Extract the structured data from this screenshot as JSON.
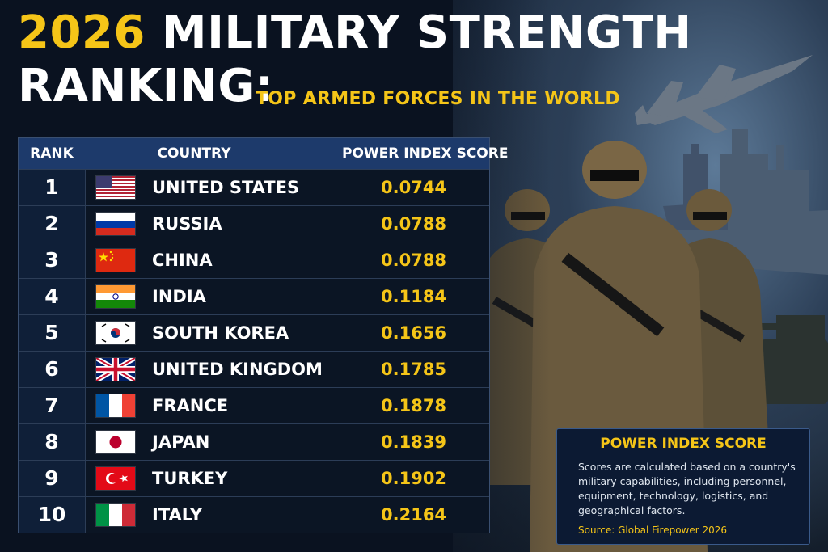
{
  "header": {
    "year": "2026",
    "title_line1_rest": "MILITARY STRENGTH",
    "title_line2": "RANKING:",
    "subtitle": "TOP ARMED FORCES IN THE WORLD"
  },
  "table": {
    "columns": [
      "RANK",
      "COUNTRY",
      "POWER INDEX SCORE"
    ],
    "rows": [
      {
        "rank": "1",
        "country": "UNITED STATES",
        "score": "0.0744",
        "flag": "us-flag-icon"
      },
      {
        "rank": "2",
        "country": "RUSSIA",
        "score": "0.0788",
        "flag": "russia-flag-icon"
      },
      {
        "rank": "3",
        "country": "CHINA",
        "score": "0.0788",
        "flag": "china-flag-icon"
      },
      {
        "rank": "4",
        "country": "INDIA",
        "score": "0.1184",
        "flag": "india-flag-icon"
      },
      {
        "rank": "5",
        "country": "SOUTH KOREA",
        "score": "0.1656",
        "flag": "south-korea-flag-icon"
      },
      {
        "rank": "6",
        "country": "UNITED KINGDOM",
        "score": "0.1785",
        "flag": "uk-flag-icon"
      },
      {
        "rank": "7",
        "country": "FRANCE",
        "score": "0.1878",
        "flag": "france-flag-icon"
      },
      {
        "rank": "8",
        "country": "JAPAN",
        "score": "0.1839",
        "flag": "japan-flag-icon"
      },
      {
        "rank": "9",
        "country": "TURKEY",
        "score": "0.1902",
        "flag": "turkey-flag-icon"
      },
      {
        "rank": "10",
        "country": "ITALY",
        "score": "0.2164",
        "flag": "italy-flag-icon"
      }
    ]
  },
  "info": {
    "title": "POWER INDEX SCORE",
    "body": "Scores are calculated based on a country's military capabilities, including personnel, equipment, technology, logistics, and geographical factors.",
    "source": "Source: Global Firepower 2026"
  },
  "colors": {
    "accent": "#f5c518",
    "header_bg": "#1d3a6b",
    "page_bg": "#0a1220"
  }
}
